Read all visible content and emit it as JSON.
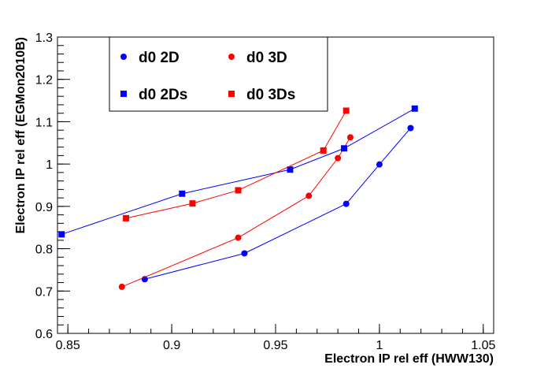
{
  "chart_data": {
    "type": "scatter",
    "xlabel": "Electron IP rel eff (HWW130)",
    "ylabel": "Electron IP rel eff (EGMon2010B)",
    "xlim": [
      0.845,
      1.055
    ],
    "ylim": [
      0.6,
      1.3
    ],
    "x_ticks": [
      0.85,
      0.9,
      0.95,
      1,
      1.05
    ],
    "x_tick_labels": [
      "0.85",
      "0.9",
      "0.95",
      "1",
      "1.05"
    ],
    "y_ticks": [
      0.6,
      0.7,
      0.8,
      0.9,
      1,
      1.1,
      1.2,
      1.3
    ],
    "y_tick_labels": [
      "0.6",
      "0.7",
      "0.8",
      "0.9",
      "1",
      "1.1",
      "1.2",
      "1.3"
    ],
    "grid": false,
    "legend_position": "top-left",
    "series": [
      {
        "name": "d0 2D",
        "marker": "circle",
        "color": "#0000ff",
        "x": [
          0.887,
          0.935,
          0.984,
          1.0,
          1.015
        ],
        "y": [
          0.728,
          0.789,
          0.906,
          0.999,
          1.085
        ]
      },
      {
        "name": "d0 3D",
        "marker": "circle",
        "color": "#ff0000",
        "x": [
          0.876,
          0.932,
          0.966,
          0.98,
          0.986
        ],
        "y": [
          0.71,
          0.826,
          0.925,
          1.014,
          1.063
        ]
      },
      {
        "name": "d0 2Ds",
        "marker": "square",
        "color": "#0000ff",
        "x": [
          0.847,
          0.905,
          0.957,
          0.983,
          1.017
        ],
        "y": [
          0.834,
          0.93,
          0.987,
          1.037,
          1.131
        ]
      },
      {
        "name": "d0 3Ds",
        "marker": "square",
        "color": "#ff0000",
        "x": [
          0.878,
          0.91,
          0.932,
          0.973,
          0.984
        ],
        "y": [
          0.872,
          0.907,
          0.938,
          1.032,
          1.126
        ]
      }
    ]
  }
}
